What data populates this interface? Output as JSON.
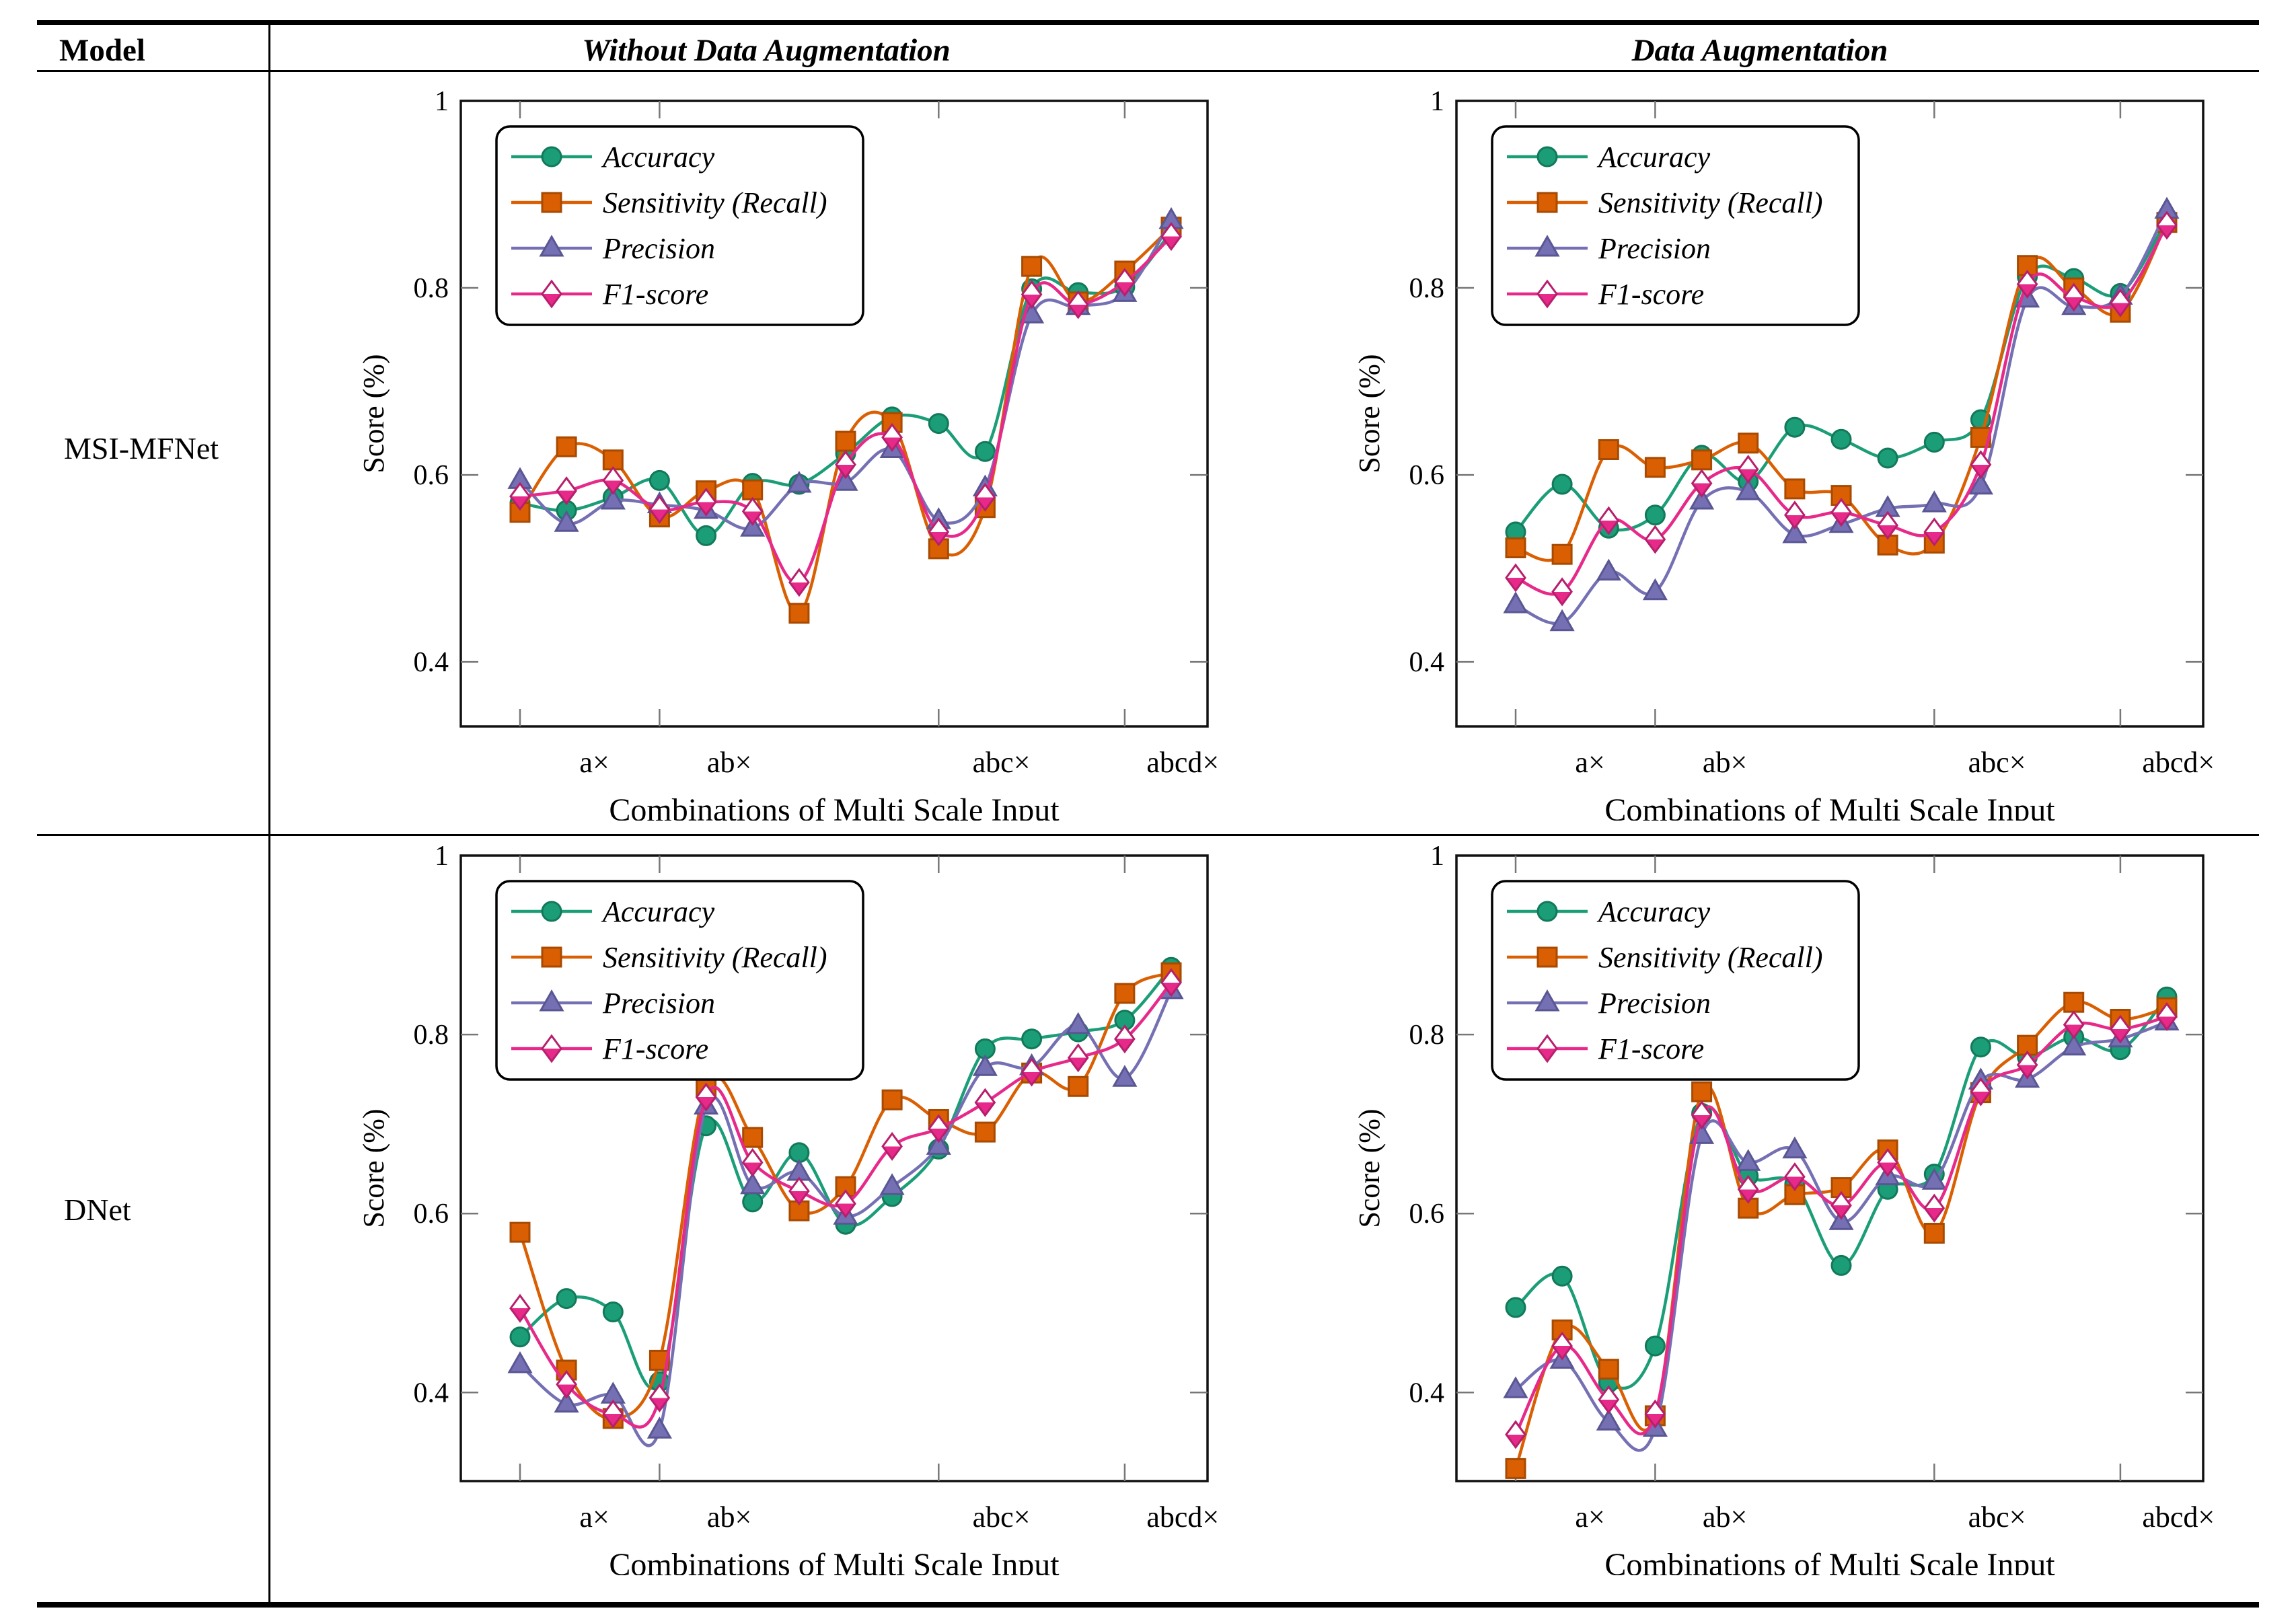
{
  "table": {
    "header": {
      "model": "Model",
      "without_da": "Without Data Augmentation",
      "da": "Data Augmentation"
    },
    "rows": [
      {
        "model": "MSI-MFNet"
      },
      {
        "model": "DNet"
      }
    ]
  },
  "axes": {
    "ylabel": "Score (%)",
    "xlabel": "Combinations of Multi Scale Input",
    "yticks": [
      {
        "v": 1.0,
        "label": "1"
      },
      {
        "v": 0.8,
        "label": "0.8"
      },
      {
        "v": 0.6,
        "label": "0.6"
      },
      {
        "v": 0.4,
        "label": "0.4"
      }
    ],
    "xtick_positions": [
      1,
      4,
      10,
      14
    ],
    "xtick_labels": [
      {
        "pos": 2.6,
        "label": "a×"
      },
      {
        "pos": 5.5,
        "label": "ab×"
      },
      {
        "pos": 11.35,
        "label": "abc×"
      },
      {
        "pos": 15.25,
        "label": "abcd×"
      }
    ],
    "n_points": 15
  },
  "legend": [
    {
      "name": "Accuracy",
      "marker": "circle",
      "color": "#1b9e77",
      "edge": "#12795a"
    },
    {
      "name": "Sensitivity (Recall)",
      "marker": "square",
      "color": "#d95f02",
      "edge": "#a84a01"
    },
    {
      "name": "Precision",
      "marker": "triangle",
      "color": "#7570b3",
      "edge": "#5a5694"
    },
    {
      "name": "F1-score",
      "marker": "diamond",
      "color": "#e7298a",
      "edge": "#b71f6d"
    }
  ],
  "chart_data": [
    {
      "type": "line",
      "model": "MSI-MFNet",
      "condition": "Without Data Augmentation",
      "ylim": [
        0.331,
        1.0
      ],
      "series": [
        {
          "name": "Accuracy",
          "values": [
            0.57,
            0.562,
            0.576,
            0.594,
            0.535,
            0.591,
            0.59,
            0.623,
            0.662,
            0.655,
            0.625,
            0.799,
            0.795,
            0.801,
            0.86
          ]
        },
        {
          "name": "Sensitivity (Recall)",
          "values": [
            0.56,
            0.63,
            0.616,
            0.555,
            0.583,
            0.584,
            0.452,
            0.636,
            0.656,
            0.521,
            0.565,
            0.823,
            0.785,
            0.818,
            0.865
          ]
        },
        {
          "name": "Precision",
          "values": [
            0.594,
            0.548,
            0.572,
            0.568,
            0.562,
            0.543,
            0.59,
            0.592,
            0.627,
            0.551,
            0.586,
            0.771,
            0.78,
            0.794,
            0.872
          ]
        },
        {
          "name": "F1-score",
          "values": [
            0.577,
            0.583,
            0.594,
            0.563,
            0.571,
            0.561,
            0.485,
            0.611,
            0.64,
            0.539,
            0.576,
            0.793,
            0.782,
            0.806,
            0.855
          ]
        }
      ]
    },
    {
      "type": "line",
      "model": "MSI-MFNet",
      "condition": "Data Augmentation",
      "ylim": [
        0.331,
        1.0
      ],
      "series": [
        {
          "name": "Accuracy",
          "values": [
            0.539,
            0.59,
            0.543,
            0.557,
            0.621,
            0.593,
            0.651,
            0.638,
            0.618,
            0.635,
            0.659,
            0.812,
            0.81,
            0.794,
            0.873
          ]
        },
        {
          "name": "Sensitivity (Recall)",
          "values": [
            0.522,
            0.515,
            0.627,
            0.608,
            0.616,
            0.634,
            0.585,
            0.578,
            0.525,
            0.527,
            0.64,
            0.824,
            0.8,
            0.774,
            0.87
          ]
        },
        {
          "name": "Precision",
          "values": [
            0.461,
            0.442,
            0.496,
            0.475,
            0.572,
            0.582,
            0.536,
            0.547,
            0.564,
            0.569,
            0.588,
            0.788,
            0.78,
            0.791,
            0.883
          ]
        },
        {
          "name": "F1-score",
          "values": [
            0.49,
            0.475,
            0.551,
            0.531,
            0.591,
            0.606,
            0.557,
            0.56,
            0.546,
            0.539,
            0.611,
            0.804,
            0.79,
            0.784,
            0.867
          ]
        }
      ]
    },
    {
      "type": "line",
      "model": "DNet",
      "condition": "Without Data Augmentation",
      "ylim": [
        0.301,
        1.0
      ],
      "series": [
        {
          "name": "Accuracy",
          "values": [
            0.462,
            0.505,
            0.49,
            0.412,
            0.698,
            0.613,
            0.668,
            0.588,
            0.619,
            0.672,
            0.784,
            0.795,
            0.803,
            0.816,
            0.875
          ]
        },
        {
          "name": "Sensitivity (Recall)",
          "values": [
            0.579,
            0.425,
            0.371,
            0.436,
            0.741,
            0.685,
            0.603,
            0.63,
            0.727,
            0.705,
            0.691,
            0.757,
            0.742,
            0.846,
            0.869
          ]
        },
        {
          "name": "Precision",
          "values": [
            0.431,
            0.387,
            0.397,
            0.358,
            0.72,
            0.631,
            0.646,
            0.597,
            0.63,
            0.675,
            0.763,
            0.764,
            0.81,
            0.751,
            0.849
          ]
        },
        {
          "name": "F1-score",
          "values": [
            0.494,
            0.409,
            0.376,
            0.394,
            0.73,
            0.657,
            0.625,
            0.611,
            0.675,
            0.695,
            0.724,
            0.758,
            0.774,
            0.795,
            0.858
          ]
        }
      ]
    },
    {
      "type": "line",
      "model": "DNet",
      "condition": "Data Augmentation",
      "ylim": [
        0.301,
        1.0
      ],
      "series": [
        {
          "name": "Accuracy",
          "values": [
            0.495,
            0.53,
            0.411,
            0.452,
            0.712,
            0.642,
            0.633,
            0.542,
            0.627,
            0.644,
            0.786,
            0.775,
            0.797,
            0.783,
            0.842
          ]
        },
        {
          "name": "Sensitivity (Recall)",
          "values": [
            0.315,
            0.47,
            0.426,
            0.374,
            0.736,
            0.606,
            0.621,
            0.629,
            0.671,
            0.578,
            0.735,
            0.788,
            0.836,
            0.817,
            0.83
          ]
        },
        {
          "name": "Precision",
          "values": [
            0.403,
            0.436,
            0.367,
            0.36,
            0.687,
            0.657,
            0.671,
            0.591,
            0.641,
            0.636,
            0.748,
            0.75,
            0.786,
            0.795,
            0.814
          ]
        },
        {
          "name": "F1-score",
          "values": [
            0.353,
            0.452,
            0.392,
            0.376,
            0.71,
            0.627,
            0.641,
            0.609,
            0.657,
            0.606,
            0.736,
            0.766,
            0.811,
            0.806,
            0.82
          ]
        }
      ]
    }
  ]
}
